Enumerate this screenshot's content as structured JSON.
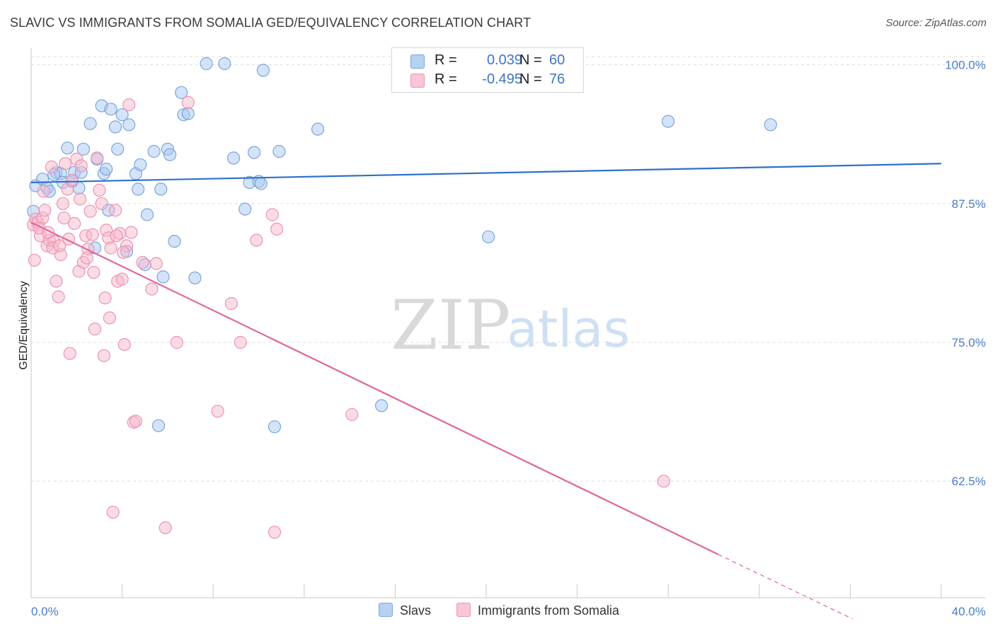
{
  "title": "SLAVIC VS IMMIGRANTS FROM SOMALIA GED/EQUIVALENCY CORRELATION CHART",
  "source": "Source: ZipAtlas.com",
  "watermark": {
    "zip": "ZIP",
    "atlas": "atlas"
  },
  "legend": {
    "series1": {
      "r_label": "R =",
      "r_value": "0.039",
      "n_label": "N =",
      "n_value": "60"
    },
    "series2": {
      "r_label": "R =",
      "r_value": "-0.495",
      "n_label": "N =",
      "n_value": "76"
    }
  },
  "bottom_legend": {
    "series1": "Slavs",
    "series2": "Immigrants from Somalia"
  },
  "colors": {
    "blue_fill": "#a9c8ef",
    "blue_stroke": "#7aa6de",
    "blue_line": "#2f6fcc",
    "pink_fill": "#f6b9cc",
    "pink_stroke": "#ee93b1",
    "pink_line": "#e0679a",
    "grid": "#dddddd",
    "tick_text": "#4a7cc9"
  },
  "chart_data": {
    "type": "scatter",
    "title": "SLAVIC VS IMMIGRANTS FROM SOMALIA GED/EQUIVALENCY CORRELATION CHART",
    "xlabel": "",
    "ylabel": "GED/Equivalency",
    "xlim": [
      0,
      40
    ],
    "ylim": [
      52,
      101.5
    ],
    "x_tick_labels": [
      {
        "value": 0,
        "label": "0.0%"
      },
      {
        "value": 40,
        "label": "40.0%"
      }
    ],
    "y_tick_labels": [
      {
        "value": 100,
        "label": "100.0%"
      },
      {
        "value": 87.5,
        "label": "87.5%"
      },
      {
        "value": 75,
        "label": "75.0%"
      },
      {
        "value": 62.5,
        "label": "62.5%"
      }
    ],
    "grid": true,
    "legend_position": "top-center",
    "series": [
      {
        "name": "Slavs",
        "color": "#a9c8ef",
        "trend": {
          "x": [
            0,
            40
          ],
          "y": [
            89.4,
            91.1
          ],
          "dashed_from": null
        },
        "points": [
          [
            0.1,
            86.8
          ],
          [
            0.2,
            89.1
          ],
          [
            0.5,
            89.7
          ],
          [
            0.7,
            88.9
          ],
          [
            0.8,
            88.6
          ],
          [
            1.1,
            90.3
          ],
          [
            1.3,
            90.2
          ],
          [
            1.4,
            89.4
          ],
          [
            1.6,
            92.5
          ],
          [
            1.8,
            89.5
          ],
          [
            1.9,
            90.3
          ],
          [
            2.1,
            88.9
          ],
          [
            2.3,
            92.4
          ],
          [
            2.6,
            94.7
          ],
          [
            2.8,
            83.5
          ],
          [
            2.9,
            91.5
          ],
          [
            3.1,
            96.3
          ],
          [
            3.2,
            90.2
          ],
          [
            3.4,
            86.9
          ],
          [
            3.5,
            96.0
          ],
          [
            3.7,
            94.4
          ],
          [
            3.8,
            92.4
          ],
          [
            4.0,
            95.5
          ],
          [
            4.2,
            83.2
          ],
          [
            4.3,
            94.6
          ],
          [
            4.6,
            90.2
          ],
          [
            4.7,
            88.8
          ],
          [
            4.8,
            91.0
          ],
          [
            5.1,
            86.5
          ],
          [
            5.0,
            82.0
          ],
          [
            5.4,
            92.2
          ],
          [
            5.6,
            67.5
          ],
          [
            5.7,
            88.8
          ],
          [
            5.8,
            80.9
          ],
          [
            6.0,
            92.4
          ],
          [
            6.1,
            91.9
          ],
          [
            6.3,
            84.1
          ],
          [
            6.6,
            97.5
          ],
          [
            6.7,
            95.5
          ],
          [
            6.9,
            95.6
          ],
          [
            7.2,
            80.8
          ],
          [
            7.7,
            100.1
          ],
          [
            8.5,
            100.1
          ],
          [
            8.9,
            91.6
          ],
          [
            9.4,
            87.0
          ],
          [
            9.6,
            89.4
          ],
          [
            9.8,
            92.1
          ],
          [
            10.0,
            89.5
          ],
          [
            10.1,
            89.3
          ],
          [
            10.2,
            99.5
          ],
          [
            10.7,
            67.4
          ],
          [
            10.9,
            92.2
          ],
          [
            12.6,
            94.2
          ],
          [
            15.4,
            69.3
          ],
          [
            20.1,
            84.5
          ],
          [
            28.0,
            94.9
          ],
          [
            32.5,
            94.6
          ],
          [
            1.0,
            90.1
          ],
          [
            2.2,
            90.3
          ],
          [
            3.3,
            90.6
          ]
        ]
      },
      {
        "name": "Immigrants from Somalia",
        "color": "#f6b9cc",
        "trend": {
          "x": [
            0,
            30.2
          ],
          "y": [
            85.8,
            55.9
          ],
          "dashed_from": 30.2,
          "dashed_to": [
            36.1,
            50.1
          ]
        },
        "points": [
          [
            0.1,
            85.6
          ],
          [
            0.2,
            86.1
          ],
          [
            0.3,
            85.8
          ],
          [
            0.4,
            84.6
          ],
          [
            0.5,
            86.2
          ],
          [
            0.6,
            86.9
          ],
          [
            0.7,
            83.7
          ],
          [
            0.8,
            84.2
          ],
          [
            0.9,
            90.8
          ],
          [
            1.0,
            84.1
          ],
          [
            1.1,
            80.5
          ],
          [
            1.2,
            79.1
          ],
          [
            1.3,
            82.9
          ],
          [
            1.4,
            87.5
          ],
          [
            1.5,
            91.1
          ],
          [
            1.6,
            88.8
          ],
          [
            1.7,
            74.0
          ],
          [
            1.8,
            89.6
          ],
          [
            1.9,
            85.7
          ],
          [
            2.0,
            91.5
          ],
          [
            2.1,
            81.4
          ],
          [
            2.2,
            90.9
          ],
          [
            2.3,
            82.2
          ],
          [
            2.4,
            84.6
          ],
          [
            2.5,
            83.4
          ],
          [
            2.6,
            86.8
          ],
          [
            2.7,
            84.7
          ],
          [
            2.8,
            76.2
          ],
          [
            2.9,
            91.6
          ],
          [
            3.0,
            88.7
          ],
          [
            3.1,
            87.5
          ],
          [
            3.2,
            73.8
          ],
          [
            3.3,
            85.1
          ],
          [
            3.4,
            84.4
          ],
          [
            3.5,
            83.5
          ],
          [
            3.6,
            59.7
          ],
          [
            3.7,
            86.9
          ],
          [
            3.8,
            80.5
          ],
          [
            3.9,
            84.8
          ],
          [
            4.0,
            80.7
          ],
          [
            4.1,
            74.8
          ],
          [
            4.2,
            83.7
          ],
          [
            4.3,
            96.4
          ],
          [
            4.4,
            84.9
          ],
          [
            4.5,
            67.8
          ],
          [
            4.6,
            67.9
          ],
          [
            4.9,
            82.2
          ],
          [
            5.3,
            79.8
          ],
          [
            5.5,
            82.1
          ],
          [
            5.9,
            58.3
          ],
          [
            6.4,
            75.0
          ],
          [
            6.9,
            96.6
          ],
          [
            8.2,
            68.8
          ],
          [
            8.8,
            78.5
          ],
          [
            9.2,
            75.0
          ],
          [
            9.9,
            84.2
          ],
          [
            10.6,
            86.5
          ],
          [
            10.7,
            57.9
          ],
          [
            10.8,
            85.2
          ],
          [
            14.1,
            68.5
          ],
          [
            27.8,
            62.5
          ],
          [
            0.15,
            82.4
          ],
          [
            0.35,
            85.3
          ],
          [
            0.55,
            88.6
          ],
          [
            0.75,
            84.9
          ],
          [
            0.95,
            83.5
          ],
          [
            1.25,
            83.7
          ],
          [
            1.45,
            86.2
          ],
          [
            2.45,
            82.6
          ],
          [
            2.75,
            81.3
          ],
          [
            3.25,
            79.0
          ],
          [
            3.45,
            77.2
          ],
          [
            1.65,
            84.3
          ],
          [
            2.15,
            87.9
          ],
          [
            3.75,
            84.6
          ],
          [
            4.05,
            83.1
          ]
        ]
      }
    ]
  }
}
